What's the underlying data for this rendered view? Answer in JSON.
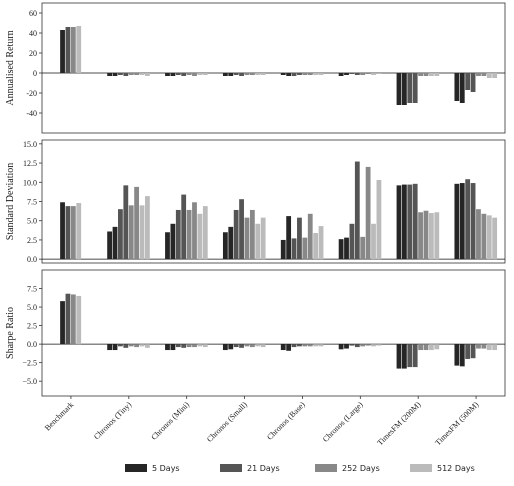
{
  "chart_data": [
    {
      "type": "grouped-bar",
      "ylabel": "Annualised Return",
      "categories": [
        "Benchmark",
        "Chronos (Tiny)",
        "Chronos (Mini)",
        "Chronos (Small)",
        "Chronos (Base)",
        "Chronos (Large)",
        "TimesFM (200M)",
        "TimesFM (500M)"
      ],
      "ylim": [
        -60,
        70
      ],
      "yticks": [
        -40,
        -20,
        0,
        20,
        40,
        60
      ],
      "series": [
        {
          "name": "5 Days",
          "color": "#262626",
          "values": [
            [
              43,
              null
            ],
            [
              -3,
              -3
            ],
            [
              -3,
              -3
            ],
            [
              -3,
              -3
            ],
            [
              -2,
              -3
            ],
            [
              -3,
              -2
            ],
            [
              -32,
              -32
            ],
            [
              -28,
              -30
            ]
          ]
        },
        {
          "name": "21 Days",
          "color": "#555555",
          "values": [
            [
              46,
              null
            ],
            [
              -2,
              -3
            ],
            [
              -2,
              -3
            ],
            [
              -2,
              -3
            ],
            [
              -3,
              -2
            ],
            [
              -1,
              -2
            ],
            [
              -30,
              -30
            ],
            [
              -17,
              -19
            ]
          ]
        },
        {
          "name": "252 Days",
          "color": "#888888",
          "values": [
            [
              46,
              null
            ],
            [
              -2,
              -2
            ],
            [
              -2,
              -3
            ],
            [
              -2,
              -2
            ],
            [
              -2,
              -2
            ],
            [
              -2,
              -1
            ],
            [
              -3,
              -3
            ],
            [
              -3,
              -3
            ]
          ]
        },
        {
          "name": "512 Days",
          "color": "#bbbbbb",
          "values": [
            [
              47,
              null
            ],
            [
              -2,
              -3
            ],
            [
              -2,
              -2
            ],
            [
              -2,
              -2
            ],
            [
              -2,
              -2
            ],
            [
              -2,
              -1
            ],
            [
              -3,
              -3
            ],
            [
              -5,
              -5
            ]
          ]
        }
      ]
    },
    {
      "type": "grouped-bar",
      "ylabel": "Standard Deviation",
      "categories": [
        "Benchmark",
        "Chronos (Tiny)",
        "Chronos (Mini)",
        "Chronos (Small)",
        "Chronos (Base)",
        "Chronos (Large)",
        "TimesFM (200M)",
        "TimesFM (500M)"
      ],
      "ylim": [
        -0.5,
        15.5
      ],
      "yticks": [
        {
          "value": 0,
          "label": "0.0"
        },
        {
          "value": 2.5,
          "label": "2.5"
        },
        {
          "value": 5,
          "label": "5.0"
        },
        {
          "value": 7.5,
          "label": "7.5"
        },
        {
          "value": 10,
          "label": "10.0"
        },
        {
          "value": 12.5,
          "label": "12.5"
        },
        {
          "value": 15,
          "label": "15.0"
        }
      ],
      "series": [
        {
          "name": "5 Days",
          "color": "#262626",
          "values": [
            [
              7.4,
              null
            ],
            [
              3.6,
              4.2
            ],
            [
              3.5,
              4.6
            ],
            [
              3.5,
              4.2
            ],
            [
              2.5,
              5.6
            ],
            [
              2.6,
              2.8
            ],
            [
              9.6,
              9.7
            ],
            [
              9.8,
              9.9
            ]
          ]
        },
        {
          "name": "21 Days",
          "color": "#555555",
          "values": [
            [
              6.9,
              null
            ],
            [
              6.5,
              9.6
            ],
            [
              6.4,
              8.4
            ],
            [
              6.4,
              7.8
            ],
            [
              2.7,
              5.4
            ],
            [
              4.6,
              12.7
            ],
            [
              9.7,
              9.8
            ],
            [
              10.4,
              9.9
            ]
          ]
        },
        {
          "name": "252 Days",
          "color": "#888888",
          "values": [
            [
              6.9,
              null
            ],
            [
              7.0,
              9.4
            ],
            [
              6.4,
              7.4
            ],
            [
              5.4,
              6.4
            ],
            [
              2.8,
              5.9
            ],
            [
              2.9,
              12.0
            ],
            [
              6.1,
              6.3
            ],
            [
              6.5,
              5.9
            ]
          ]
        },
        {
          "name": "512 Days",
          "color": "#bbbbbb",
          "values": [
            [
              7.3,
              null
            ],
            [
              7.0,
              8.2
            ],
            [
              5.9,
              6.9
            ],
            [
              4.6,
              5.4
            ],
            [
              3.4,
              4.3
            ],
            [
              4.6,
              10.3
            ],
            [
              6.0,
              6.1
            ],
            [
              5.7,
              5.4
            ]
          ]
        }
      ]
    },
    {
      "type": "grouped-bar",
      "ylabel": "Sharpe Ratio",
      "categories": [
        "Benchmark",
        "Chronos (Tiny)",
        "Chronos (Mini)",
        "Chronos (Small)",
        "Chronos (Base)",
        "Chronos (Large)",
        "TimesFM (200M)",
        "TimesFM (500M)"
      ],
      "ylim": [
        -7,
        10
      ],
      "yticks": [
        {
          "value": -5,
          "label": "−5.0"
        },
        {
          "value": -2.5,
          "label": "−2.5"
        },
        {
          "value": 0,
          "label": "0.0"
        },
        {
          "value": 2.5,
          "label": "2.5"
        },
        {
          "value": 5,
          "label": "5.0"
        },
        {
          "value": 7.5,
          "label": "7.5"
        }
      ],
      "series": [
        {
          "name": "5 Days",
          "color": "#262626",
          "values": [
            [
              5.8,
              null
            ],
            [
              -0.8,
              -0.8
            ],
            [
              -0.8,
              -0.8
            ],
            [
              -0.8,
              -0.7
            ],
            [
              -0.8,
              -0.9
            ],
            [
              -0.7,
              -0.6
            ],
            [
              -3.3,
              -3.3
            ],
            [
              -2.9,
              -3.0
            ]
          ]
        },
        {
          "name": "21 Days",
          "color": "#555555",
          "values": [
            [
              6.8,
              null
            ],
            [
              -0.3,
              -0.5
            ],
            [
              -0.4,
              -0.5
            ],
            [
              -0.4,
              -0.5
            ],
            [
              -0.4,
              -0.3
            ],
            [
              -0.2,
              -0.4
            ],
            [
              -3.1,
              -3.1
            ],
            [
              -2.0,
              -1.9
            ]
          ]
        },
        {
          "name": "252 Days",
          "color": "#888888",
          "values": [
            [
              6.7,
              null
            ],
            [
              -0.3,
              -0.4
            ],
            [
              -0.4,
              -0.4
            ],
            [
              -0.3,
              -0.4
            ],
            [
              -0.3,
              -0.3
            ],
            [
              -0.3,
              -0.2
            ],
            [
              -0.8,
              -0.8
            ],
            [
              -0.6,
              -0.6
            ]
          ]
        },
        {
          "name": "512 Days",
          "color": "#bbbbbb",
          "values": [
            [
              6.5,
              null
            ],
            [
              -0.3,
              -0.5
            ],
            [
              -0.3,
              -0.4
            ],
            [
              -0.3,
              -0.4
            ],
            [
              -0.3,
              -0.3
            ],
            [
              -0.3,
              -0.2
            ],
            [
              -0.8,
              -0.7
            ],
            [
              -0.8,
              -0.8
            ]
          ]
        }
      ]
    }
  ]
}
